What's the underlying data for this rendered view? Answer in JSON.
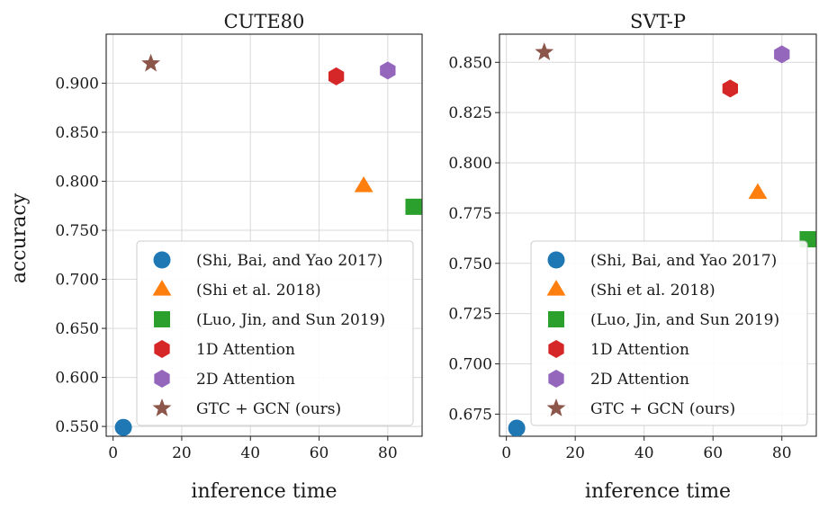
{
  "figure": {
    "y_label": "accuracy"
  },
  "chart_data": [
    {
      "type": "scatter",
      "title": "CUTE80",
      "xlabel": "inference time",
      "ylabel": "accuracy",
      "xlim": [
        -2,
        90
      ],
      "ylim": [
        0.54,
        0.95
      ],
      "xticks": [
        0,
        20,
        40,
        60,
        80
      ],
      "xtick_labels": [
        "0",
        "20",
        "40",
        "60",
        "80"
      ],
      "yticks": [
        0.55,
        0.6,
        0.65,
        0.7,
        0.75,
        0.8,
        0.85,
        0.9
      ],
      "ytick_labels": [
        "0.550",
        "0.600",
        "0.650",
        "0.700",
        "0.750",
        "0.800",
        "0.850",
        "0.900"
      ],
      "grid": true,
      "legend_position": "bottom-right",
      "series": [
        {
          "name": "(Shi, Bai, and Yao 2017)",
          "marker": "circle",
          "color": "#1f77b4",
          "x": [
            3
          ],
          "y": [
            0.549
          ]
        },
        {
          "name": "(Shi et al. 2018)",
          "marker": "triangle",
          "color": "#ff7f0e",
          "x": [
            73
          ],
          "y": [
            0.795
          ]
        },
        {
          "name": "(Luo, Jin, and Sun 2019)",
          "marker": "square",
          "color": "#2ca02c",
          "x": [
            87.5
          ],
          "y": [
            0.774
          ]
        },
        {
          "name": "1D Attention",
          "marker": "hexagon",
          "color": "#d62728",
          "x": [
            65
          ],
          "y": [
            0.907
          ]
        },
        {
          "name": "2D Attention",
          "marker": "hexagon",
          "color": "#9467bd",
          "x": [
            80
          ],
          "y": [
            0.913
          ]
        },
        {
          "name": "GTC + GCN (ours)",
          "marker": "star",
          "color": "#8c564b",
          "x": [
            11
          ],
          "y": [
            0.92
          ]
        }
      ]
    },
    {
      "type": "scatter",
      "title": "SVT-P",
      "xlabel": "inference time",
      "ylabel": "",
      "xlim": [
        -2,
        90
      ],
      "ylim": [
        0.664,
        0.864
      ],
      "xticks": [
        0,
        20,
        40,
        60,
        80
      ],
      "xtick_labels": [
        "0",
        "20",
        "40",
        "60",
        "80"
      ],
      "yticks": [
        0.675,
        0.7,
        0.725,
        0.75,
        0.775,
        0.8,
        0.825,
        0.85
      ],
      "ytick_labels": [
        "0.675",
        "0.700",
        "0.725",
        "0.750",
        "0.775",
        "0.800",
        "0.825",
        "0.850"
      ],
      "grid": true,
      "legend_position": "bottom-right",
      "series": [
        {
          "name": "(Shi, Bai, and Yao 2017)",
          "marker": "circle",
          "color": "#1f77b4",
          "x": [
            3
          ],
          "y": [
            0.668
          ]
        },
        {
          "name": "(Shi et al. 2018)",
          "marker": "triangle",
          "color": "#ff7f0e",
          "x": [
            73
          ],
          "y": [
            0.785
          ]
        },
        {
          "name": "(Luo, Jin, and Sun 2019)",
          "marker": "square",
          "color": "#2ca02c",
          "x": [
            87.5
          ],
          "y": [
            0.762
          ]
        },
        {
          "name": "1D Attention",
          "marker": "hexagon",
          "color": "#d62728",
          "x": [
            65
          ],
          "y": [
            0.837
          ]
        },
        {
          "name": "2D Attention",
          "marker": "hexagon",
          "color": "#9467bd",
          "x": [
            80
          ],
          "y": [
            0.854
          ]
        },
        {
          "name": "GTC + GCN (ours)",
          "marker": "star",
          "color": "#8c564b",
          "x": [
            11
          ],
          "y": [
            0.855
          ]
        }
      ]
    }
  ]
}
